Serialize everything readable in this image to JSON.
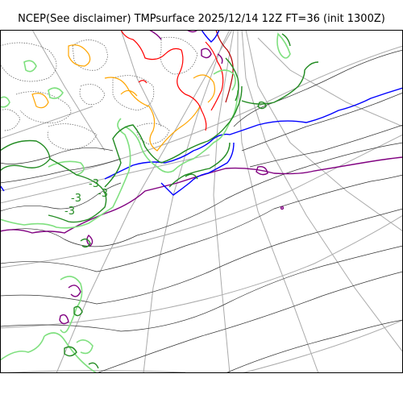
{
  "header": {
    "title": "NCEP(See disclaimer) TMPsurface 2025/12/14 12Z FT=36 (init 1300Z)"
  },
  "map": {
    "contour_labels": [
      {
        "text": "-3",
        "color": "#228b22"
      },
      {
        "text": "-3",
        "color": "#228b22"
      },
      {
        "text": "-3",
        "color": "#228b22"
      },
      {
        "text": "-3",
        "color": "#228b22"
      }
    ],
    "colors": {
      "graticule": "#aaaaaa",
      "frame": "#000000",
      "isotherm_minor": "#333333",
      "isotherm_dotted": "#555555",
      "isotherm_green": "#228b22",
      "isotherm_lightgreen": "#7fe07f",
      "isotherm_blue": "#0000ff",
      "isotherm_purple": "#800080",
      "isotherm_orange": "#ffa500",
      "isotherm_red": "#ff0000",
      "isotherm_darkred": "#b00000"
    }
  }
}
